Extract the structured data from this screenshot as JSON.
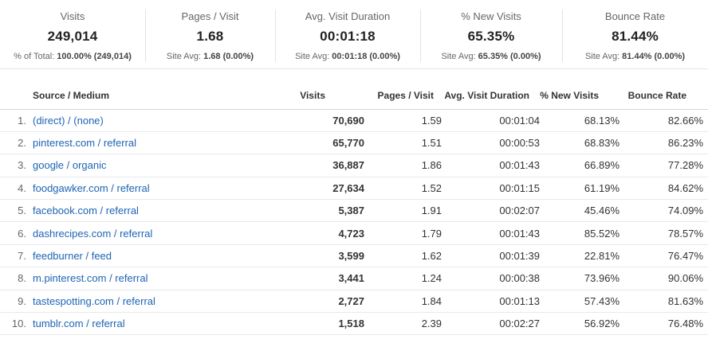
{
  "colors": {
    "link": "#1e64b4",
    "divider": "#e2e2e2",
    "text": "#333333",
    "muted": "#666666"
  },
  "summary": {
    "cards": [
      {
        "label": "Visits",
        "value": "249,014",
        "sub_prefix": "% of Total:",
        "sub_value": "100.00% (249,014)"
      },
      {
        "label": "Pages / Visit",
        "value": "1.68",
        "sub_prefix": "Site Avg:",
        "sub_value": "1.68 (0.00%)"
      },
      {
        "label": "Avg. Visit Duration",
        "value": "00:01:18",
        "sub_prefix": "Site Avg:",
        "sub_value": "00:01:18 (0.00%)"
      },
      {
        "label": "% New Visits",
        "value": "65.35%",
        "sub_prefix": "Site Avg:",
        "sub_value": "65.35% (0.00%)"
      },
      {
        "label": "Bounce Rate",
        "value": "81.44%",
        "sub_prefix": "Site Avg:",
        "sub_value": "81.44% (0.00%)"
      }
    ]
  },
  "table": {
    "headers": {
      "source": "Source / Medium",
      "visits": "Visits",
      "pages": "Pages / Visit",
      "duration": "Avg. Visit Duration",
      "new_visits": "% New Visits",
      "bounce": "Bounce Rate"
    },
    "rows": [
      {
        "rank": "1.",
        "source": "(direct) / (none)",
        "visits": "70,690",
        "pages": "1.59",
        "duration": "00:01:04",
        "new_visits": "68.13%",
        "bounce": "82.66%"
      },
      {
        "rank": "2.",
        "source": "pinterest.com / referral",
        "visits": "65,770",
        "pages": "1.51",
        "duration": "00:00:53",
        "new_visits": "68.83%",
        "bounce": "86.23%"
      },
      {
        "rank": "3.",
        "source": "google / organic",
        "visits": "36,887",
        "pages": "1.86",
        "duration": "00:01:43",
        "new_visits": "66.89%",
        "bounce": "77.28%"
      },
      {
        "rank": "4.",
        "source": "foodgawker.com / referral",
        "visits": "27,634",
        "pages": "1.52",
        "duration": "00:01:15",
        "new_visits": "61.19%",
        "bounce": "84.62%"
      },
      {
        "rank": "5.",
        "source": "facebook.com / referral",
        "visits": "5,387",
        "pages": "1.91",
        "duration": "00:02:07",
        "new_visits": "45.46%",
        "bounce": "74.09%"
      },
      {
        "rank": "6.",
        "source": "dashrecipes.com / referral",
        "visits": "4,723",
        "pages": "1.79",
        "duration": "00:01:43",
        "new_visits": "85.52%",
        "bounce": "78.57%"
      },
      {
        "rank": "7.",
        "source": "feedburner / feed",
        "visits": "3,599",
        "pages": "1.62",
        "duration": "00:01:39",
        "new_visits": "22.81%",
        "bounce": "76.47%"
      },
      {
        "rank": "8.",
        "source": "m.pinterest.com / referral",
        "visits": "3,441",
        "pages": "1.24",
        "duration": "00:00:38",
        "new_visits": "73.96%",
        "bounce": "90.06%"
      },
      {
        "rank": "9.",
        "source": "tastespotting.com / referral",
        "visits": "2,727",
        "pages": "1.84",
        "duration": "00:01:13",
        "new_visits": "57.43%",
        "bounce": "81.63%"
      },
      {
        "rank": "10.",
        "source": "tumblr.com / referral",
        "visits": "1,518",
        "pages": "2.39",
        "duration": "00:02:27",
        "new_visits": "56.92%",
        "bounce": "76.48%"
      }
    ]
  }
}
